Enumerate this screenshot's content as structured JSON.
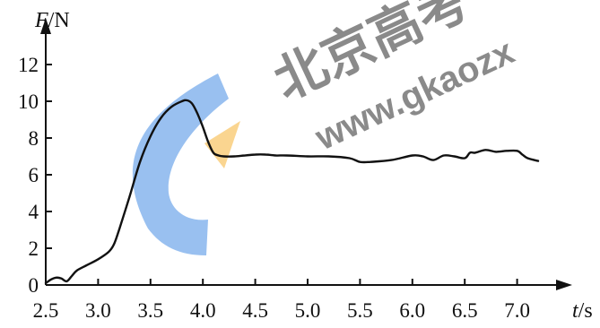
{
  "watermark": {
    "cn_text": "北京高考",
    "url_text": "www.gkaozx",
    "blue": "#2f7fe0",
    "orange": "#f6b030"
  },
  "chart_data": {
    "type": "line",
    "title": "",
    "ylabel_italic": "F",
    "ylabel_unit": "/N",
    "xlabel_italic": "t",
    "xlabel_unit": "/s",
    "xlim": [
      2.5,
      7.2
    ],
    "ylim": [
      0,
      12
    ],
    "x_ticks": [
      2.5,
      3.0,
      3.5,
      4.0,
      4.5,
      5.0,
      5.5,
      6.0,
      6.5,
      7.0
    ],
    "x_tick_labels": [
      "2.5",
      "3.0",
      "3.5",
      "4.0",
      "4.5",
      "5.0",
      "5.5",
      "6.0",
      "6.5",
      "7.0"
    ],
    "y_ticks": [
      0,
      2,
      4,
      6,
      8,
      10,
      12
    ],
    "y_tick_labels": [
      "0",
      "2",
      "4",
      "6",
      "8",
      "10",
      "12"
    ],
    "grid": false,
    "line_color": "#111111",
    "series": [
      {
        "x": [
          2.5,
          2.55,
          2.6,
          2.65,
          2.7,
          2.75,
          2.8,
          2.9,
          3.0,
          3.1,
          3.15,
          3.2,
          3.3,
          3.4,
          3.5,
          3.6,
          3.7,
          3.8,
          3.85,
          3.9,
          3.95,
          4.0,
          4.05,
          4.1,
          4.15,
          4.2,
          4.3,
          4.4,
          4.5,
          4.6,
          4.7,
          4.8,
          5.0,
          5.2,
          5.4,
          5.5,
          5.6,
          5.8,
          6.0,
          6.1,
          6.2,
          6.3,
          6.4,
          6.5,
          6.55,
          6.6,
          6.7,
          6.8,
          6.9,
          7.0,
          7.05,
          7.1,
          7.2
        ],
        "y": [
          0.1,
          0.3,
          0.4,
          0.35,
          0.2,
          0.5,
          0.8,
          1.1,
          1.4,
          1.8,
          2.2,
          3.0,
          4.8,
          6.7,
          8.1,
          9.1,
          9.7,
          10.0,
          10.05,
          9.85,
          9.3,
          8.6,
          7.8,
          7.2,
          7.05,
          7.0,
          7.0,
          7.05,
          7.1,
          7.1,
          7.05,
          7.05,
          7.0,
          7.0,
          6.9,
          6.7,
          6.7,
          6.8,
          7.05,
          7.0,
          6.8,
          7.05,
          7.0,
          6.9,
          7.2,
          7.2,
          7.35,
          7.25,
          7.3,
          7.3,
          7.1,
          6.9,
          6.75
        ]
      }
    ]
  }
}
